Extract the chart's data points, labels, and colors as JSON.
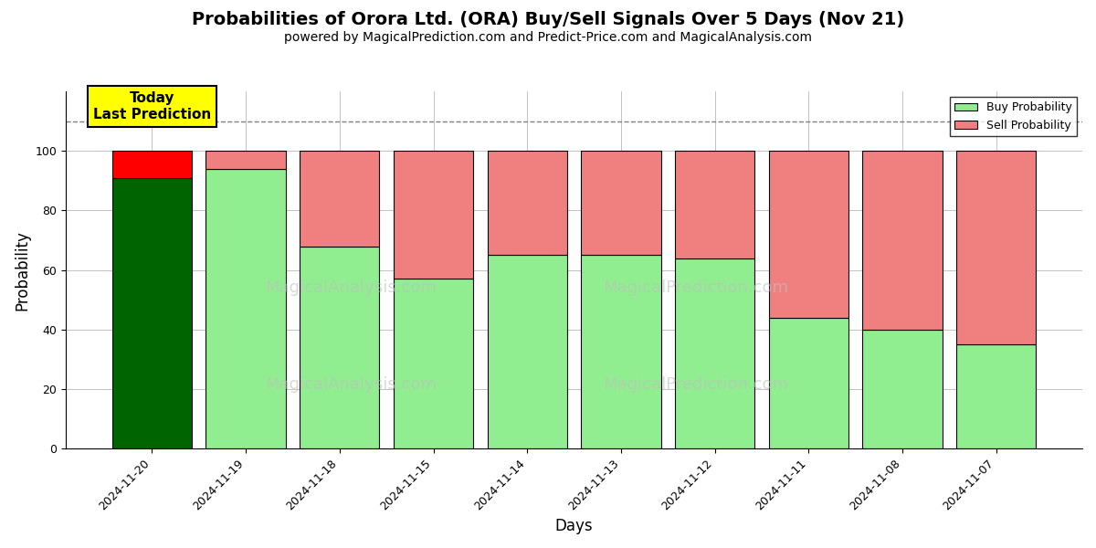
{
  "title": "Probabilities of Orora Ltd. (ORA) Buy/Sell Signals Over 5 Days (Nov 21)",
  "subtitle": "powered by MagicalPrediction.com and Predict-Price.com and MagicalAnalysis.com",
  "xlabel": "Days",
  "ylabel": "Probability",
  "dates": [
    "2024-11-20",
    "2024-11-19",
    "2024-11-18",
    "2024-11-15",
    "2024-11-14",
    "2024-11-13",
    "2024-11-12",
    "2024-11-11",
    "2024-11-08",
    "2024-11-07"
  ],
  "buy_values": [
    91,
    94,
    68,
    57,
    65,
    65,
    64,
    44,
    40,
    35
  ],
  "sell_values": [
    9,
    6,
    32,
    43,
    35,
    35,
    36,
    56,
    60,
    65
  ],
  "today_bar_buy_color": "#006400",
  "today_bar_sell_color": "#FF0000",
  "regular_bar_buy_color": "#90EE90",
  "regular_bar_sell_color": "#F08080",
  "bar_edge_color": "#000000",
  "today_annotation_bg": "#FFFF00",
  "today_annotation_text": "Today\nLast Prediction",
  "legend_buy_label": "Buy Probability",
  "legend_sell_label": "Sell Probability",
  "ylim": [
    0,
    120
  ],
  "yticks": [
    0,
    20,
    40,
    60,
    80,
    100
  ],
  "dashed_line_y": 110,
  "background_color": "#FFFFFF",
  "grid_color": "#AAAAAA",
  "title_fontsize": 14,
  "subtitle_fontsize": 10,
  "axis_label_fontsize": 12,
  "tick_fontsize": 9,
  "bar_width": 0.85
}
